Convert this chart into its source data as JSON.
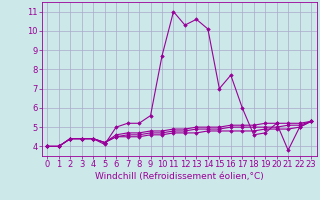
{
  "xlabel": "Windchill (Refroidissement éolien,°C)",
  "x_hours": [
    0,
    1,
    2,
    3,
    4,
    5,
    6,
    7,
    8,
    9,
    10,
    11,
    12,
    13,
    14,
    15,
    16,
    17,
    18,
    19,
    20,
    21,
    22,
    23
  ],
  "line1": [
    4.0,
    4.0,
    4.4,
    4.4,
    4.4,
    4.1,
    5.0,
    5.2,
    5.2,
    5.6,
    8.7,
    11.0,
    10.3,
    10.6,
    10.1,
    7.0,
    7.7,
    6.0,
    4.6,
    4.7,
    5.2,
    3.8,
    5.0,
    5.3
  ],
  "line2": [
    4.0,
    4.0,
    4.4,
    4.4,
    4.4,
    4.2,
    4.6,
    4.7,
    4.7,
    4.8,
    4.8,
    4.9,
    4.9,
    5.0,
    5.0,
    5.0,
    5.1,
    5.1,
    5.1,
    5.2,
    5.2,
    5.2,
    5.2,
    5.3
  ],
  "line3": [
    4.0,
    4.0,
    4.4,
    4.4,
    4.4,
    4.2,
    4.5,
    4.6,
    4.6,
    4.7,
    4.7,
    4.8,
    4.8,
    4.9,
    4.9,
    4.9,
    5.0,
    5.0,
    5.0,
    5.0,
    5.0,
    5.1,
    5.1,
    5.3
  ],
  "line4": [
    4.0,
    4.0,
    4.4,
    4.4,
    4.4,
    4.2,
    4.5,
    4.5,
    4.5,
    4.6,
    4.6,
    4.7,
    4.7,
    4.7,
    4.8,
    4.8,
    4.8,
    4.8,
    4.8,
    4.9,
    4.9,
    4.9,
    5.0,
    5.3
  ],
  "line_color": "#990099",
  "bg_color": "#cce8e8",
  "grid_color": "#aaaacc",
  "ylim": [
    3.5,
    11.5
  ],
  "yticks": [
    4,
    5,
    6,
    7,
    8,
    9,
    10,
    11
  ],
  "xticks": [
    0,
    1,
    2,
    3,
    4,
    5,
    6,
    7,
    8,
    9,
    10,
    11,
    12,
    13,
    14,
    15,
    16,
    17,
    18,
    19,
    20,
    21,
    22,
    23
  ],
  "marker": "D",
  "markersize": 1.8,
  "linewidth": 0.8,
  "xlabel_fontsize": 6.5,
  "tick_fontsize": 6.0,
  "label_color": "#990099"
}
